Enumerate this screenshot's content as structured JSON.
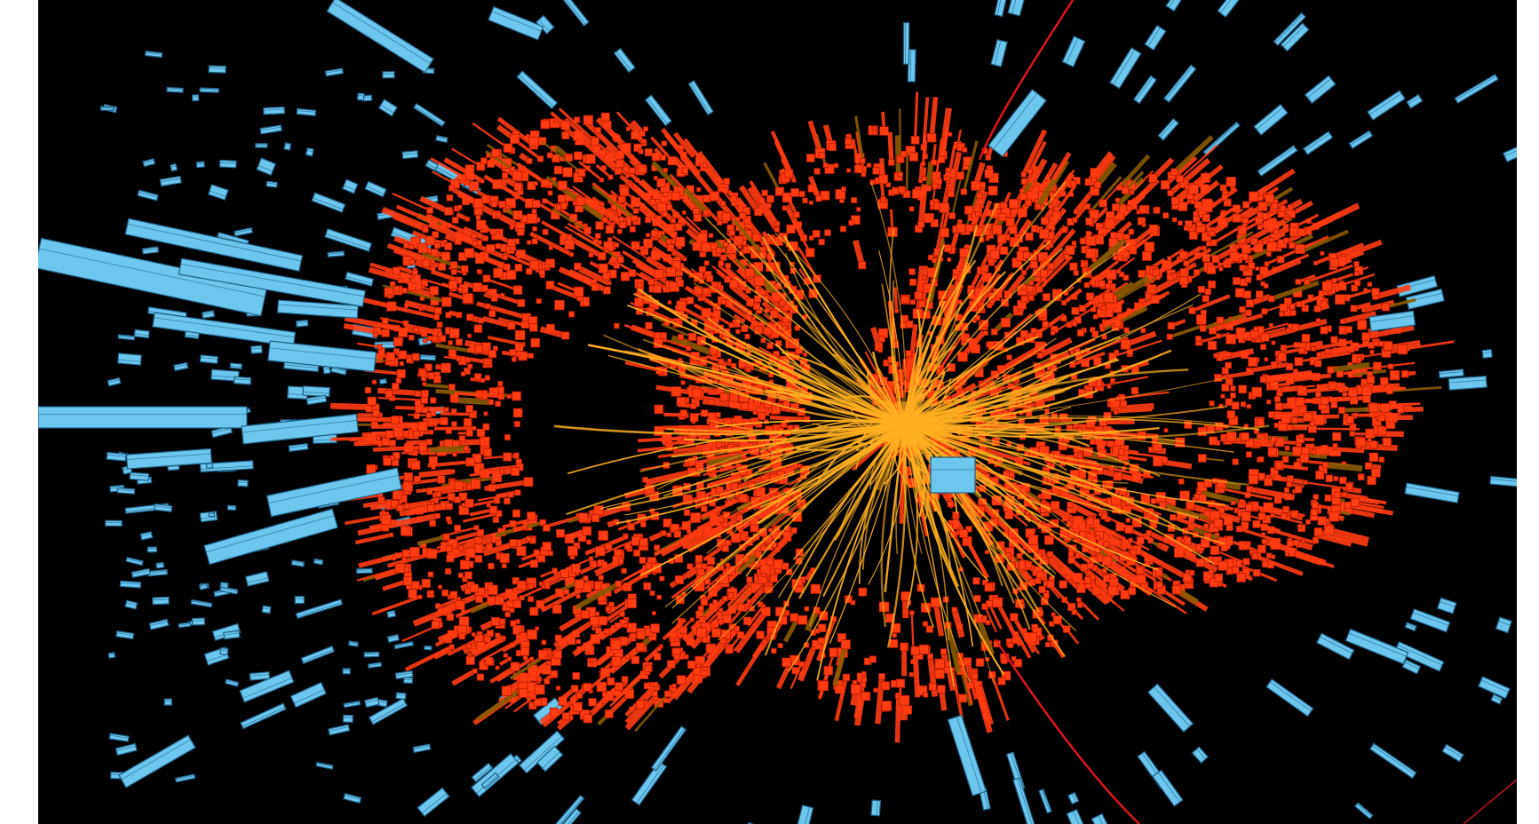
{
  "scene": {
    "subject": "particle-collision-event-display",
    "background_color": "#000000",
    "colors": {
      "calorimeter_block": "#ff3b12",
      "calorimeter_edge": "#b31a00",
      "calorimeter_dim": "#8a5a00",
      "track": "#ffb020",
      "muon_block_fill": "#6cc6ee",
      "muon_block_edge": "#1e5f86",
      "magnetic_arc": "#e0151a"
    },
    "regions": [
      "left-calorimeter-ring",
      "right-calorimeter-ring",
      "central-track-burst",
      "left-muon-chamber-cluster",
      "outer-muon-chambers",
      "curved-muon-track"
    ]
  }
}
